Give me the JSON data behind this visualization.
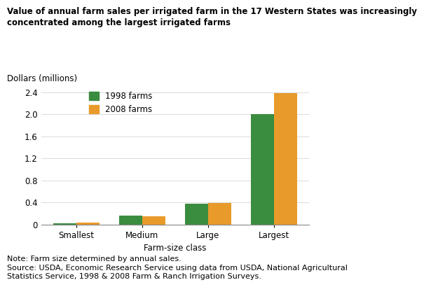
{
  "title_line1": "Value of annual farm sales per irrigated farm in the 17 Western States was increasingly",
  "title_line2": "concentrated among the largest irrigated farms",
  "ylabel": "Dollars (millions)",
  "xlabel": "Farm-size class",
  "categories": [
    "Smallest",
    "Medium",
    "Large",
    "Largest"
  ],
  "series_1998": [
    0.02,
    0.16,
    0.37,
    2.0
  ],
  "series_2008": [
    0.03,
    0.15,
    0.385,
    2.39
  ],
  "color_1998": "#3a8c3f",
  "color_2008": "#e89b2a",
  "legend_labels": [
    "1998 farms",
    "2008 farms"
  ],
  "ylim": [
    0,
    2.6
  ],
  "yticks": [
    0,
    0.4,
    0.8,
    1.2,
    1.6,
    2.0,
    2.4
  ],
  "bar_width": 0.35,
  "note_line1": "Note: Farm size determined by annual sales.",
  "note_line2": "Source: USDA, Economic Research Service using data from USDA, National Agricultural",
  "note_line3": "Statistics Service, 1998 & 2008 Farm & Ranch Irrigation Surveys.",
  "background_color": "#ffffff",
  "title_fontsize": 8.5,
  "axis_label_fontsize": 8.5,
  "tick_fontsize": 8.5,
  "legend_fontsize": 8.5,
  "note_fontsize": 8.0
}
